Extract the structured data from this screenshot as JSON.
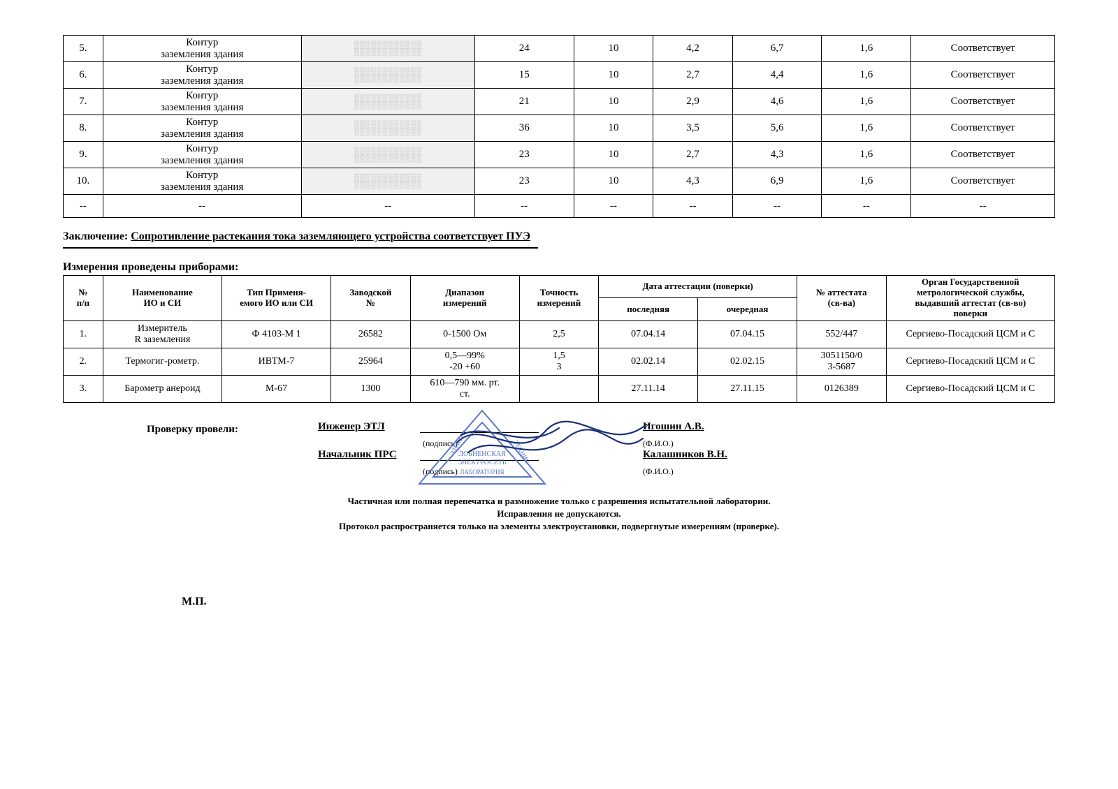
{
  "table1": {
    "col_widths": [
      "4%",
      "20%",
      "17.5%",
      "10%",
      "8%",
      "8%",
      "9%",
      "9%",
      "14.5%"
    ],
    "rows": [
      {
        "n": "5.",
        "name": "Контур\nзаземления здания",
        "c3": "",
        "c4": "24",
        "c5": "10",
        "c6": "4,2",
        "c7": "6,7",
        "c8": "1,6",
        "c9": "Соответствует"
      },
      {
        "n": "6.",
        "name": "Контур\nзаземления здания",
        "c3": "",
        "c4": "15",
        "c5": "10",
        "c6": "2,7",
        "c7": "4,4",
        "c8": "1,6",
        "c9": "Соответствует"
      },
      {
        "n": "7.",
        "name": "Контур\nзаземления здания",
        "c3": "",
        "c4": "21",
        "c5": "10",
        "c6": "2,9",
        "c7": "4,6",
        "c8": "1,6",
        "c9": "Соответствует"
      },
      {
        "n": "8.",
        "name": "Контур\nзаземления здания",
        "c3": "",
        "c4": "36",
        "c5": "10",
        "c6": "3,5",
        "c7": "5,6",
        "c8": "1,6",
        "c9": "Соответствует"
      },
      {
        "n": "9.",
        "name": "Контур\nзаземления здания",
        "c3": "",
        "c4": "23",
        "c5": "10",
        "c6": "2,7",
        "c7": "4,3",
        "c8": "1,6",
        "c9": "Соответствует"
      },
      {
        "n": "10.",
        "name": "Контур\nзаземления здания",
        "c3": "",
        "c4": "23",
        "c5": "10",
        "c6": "4,3",
        "c7": "6,9",
        "c8": "1,6",
        "c9": "Соответствует"
      },
      {
        "n": "--",
        "name": "--",
        "c3": "--",
        "c4": "--",
        "c5": "--",
        "c6": "--",
        "c7": "--",
        "c8": "--",
        "c9": "--",
        "dash": true
      }
    ]
  },
  "conclusion": {
    "label": "Заключение:",
    "text": "Сопротивление растекания тока заземляющего устройства соответствует ПУЭ"
  },
  "instruments_title": "Измерения проведены приборами:",
  "table2": {
    "col_widths": [
      "4%",
      "12%",
      "11%",
      "8%",
      "11%",
      "8%",
      "10%",
      "10%",
      "9%",
      "17%"
    ],
    "headers": {
      "h_npp": "№\nп/п",
      "h_name": "Наименование\nИО и СИ",
      "h_type": "Тип Применя-\nемого ИО или СИ",
      "h_serial": "Заводской\n№",
      "h_range": "Диапазон\nизмерений",
      "h_acc": "Точность\nизмерений",
      "h_date": "Дата аттестации (поверки)",
      "h_last": "последняя",
      "h_next": "очередная",
      "h_cert": "№ аттестата\n(св-ва)",
      "h_org": "Орган Государственной\nметрологической службы,\nвыдавший аттестат (св-во)\nповерки"
    },
    "rows": [
      {
        "n": "1.",
        "name": "Измеритель\nR заземления",
        "type": "Ф 4103-М 1",
        "serial": "26582",
        "range": "0-1500 Ом",
        "acc": "2,5",
        "last": "07.04.14",
        "next": "07.04.15",
        "cert": "552/447",
        "org": "Сергиево-Посадский ЦСМ и С"
      },
      {
        "n": "2.",
        "name": "Термогиг-рометр.",
        "type": "ИВТМ-7",
        "serial": "25964",
        "range": "0,5—99%\n-20 +60",
        "acc": "1,5\n3",
        "last": "02.02.14",
        "next": "02.02.15",
        "cert": "3051150/0\n3-5687",
        "org": "Сергиево-Посадский ЦСМ и С"
      },
      {
        "n": "3.",
        "name": "Барометр анероид",
        "type": "М-67",
        "serial": "1300",
        "range": "610—790 мм. рт.\nст.",
        "acc": "",
        "last": "27.11.14",
        "next": "27.11.15",
        "cert": "0126389",
        "org": "Сергиево-Посадский ЦСМ и С"
      }
    ]
  },
  "signatures": {
    "check_label": "Проверку провели:",
    "roles": [
      {
        "role": "Инженер ЭТЛ",
        "sub": "(подпись)",
        "name": "Игошин А.В.",
        "fio": "(Ф.И.О.)"
      },
      {
        "role": "Начальник ПРС",
        "sub": "(подпись)",
        "name": "Калашников В.Н.",
        "fio": "(Ф.И.О.)"
      }
    ]
  },
  "footer": {
    "l1": "Частичная или полная перепечатка и размножение только с разрешения испытательной лаборатории.",
    "l2": "Исправления не допускаются.",
    "l3": "Протокол распространяется только на элементы электроустановки, подвергнутые измерениям (проверке)."
  },
  "mp": "М.П.",
  "colors": {
    "stamp": "#5b78c7",
    "ink": "#1a2f7a"
  }
}
